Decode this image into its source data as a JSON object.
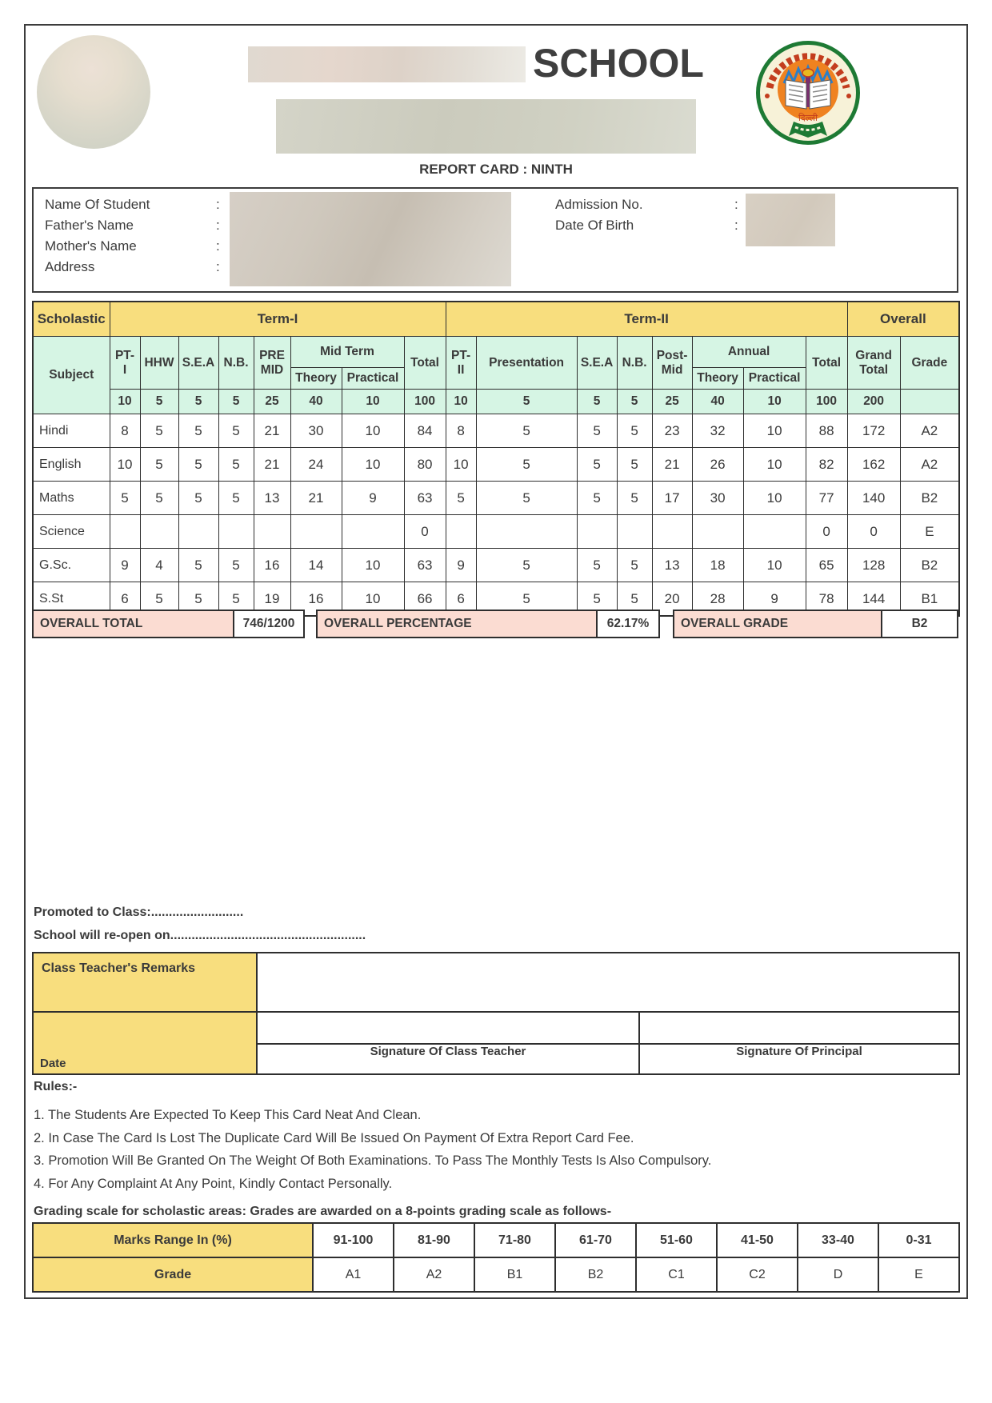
{
  "header": {
    "school_word": "SCHOOL",
    "report_title": "REPORT CARD : NINTH"
  },
  "student_info": {
    "colon": ":",
    "name_label": "Name Of Student",
    "father_label": "Father's Name",
    "mother_label": "Mother's Name",
    "address_label": "Address",
    "admission_label": "Admission No.",
    "dob_label": "Date Of Birth"
  },
  "marks_table": {
    "scholastic": "Scholastic",
    "term1": "Term-I",
    "term2": "Term-II",
    "overall": "Overall",
    "subject": "Subject",
    "cols": {
      "pt1": "PT-\nI",
      "hhw": "HHW",
      "sea": "S.E.A",
      "nb": "N.B.",
      "premid": "PRE\nMID",
      "midterm": "Mid Term",
      "theory": "Theory",
      "practical": "Practical",
      "total": "Total",
      "pt2": "PT-\nII",
      "presentation": "Presentation",
      "postmid": "Post-\nMid",
      "annual": "Annual",
      "grand_total": "Grand\nTotal",
      "grade": "Grade"
    },
    "max_marks": {
      "t1": [
        "10",
        "5",
        "5",
        "5",
        "25",
        "40",
        "10",
        "100"
      ],
      "t2": [
        "10",
        "5",
        "5",
        "5",
        "25",
        "40",
        "10",
        "100"
      ],
      "grand": "200",
      "grade": ""
    },
    "rows": [
      {
        "subject": "Hindi",
        "t1": [
          "8",
          "5",
          "5",
          "5",
          "21",
          "30",
          "10",
          "84"
        ],
        "t2": [
          "8",
          "5",
          "5",
          "5",
          "23",
          "32",
          "10",
          "88"
        ],
        "grand": "172",
        "grade": "A2"
      },
      {
        "subject": "English",
        "t1": [
          "10",
          "5",
          "5",
          "5",
          "21",
          "24",
          "10",
          "80"
        ],
        "t2": [
          "10",
          "5",
          "5",
          "5",
          "21",
          "26",
          "10",
          "82"
        ],
        "grand": "162",
        "grade": "A2"
      },
      {
        "subject": "Maths",
        "t1": [
          "5",
          "5",
          "5",
          "5",
          "13",
          "21",
          "9",
          "63"
        ],
        "t2": [
          "5",
          "5",
          "5",
          "5",
          "17",
          "30",
          "10",
          "77"
        ],
        "grand": "140",
        "grade": "B2"
      },
      {
        "subject": "Science",
        "t1": [
          "",
          "",
          "",
          "",
          "",
          "",
          "",
          "0"
        ],
        "t2": [
          "",
          "",
          "",
          "",
          "",
          "",
          "",
          "0"
        ],
        "grand": "0",
        "grade": "E"
      },
      {
        "subject": "G.Sc.",
        "t1": [
          "9",
          "4",
          "5",
          "5",
          "16",
          "14",
          "10",
          "63"
        ],
        "t2": [
          "9",
          "5",
          "5",
          "5",
          "13",
          "18",
          "10",
          "65"
        ],
        "grand": "128",
        "grade": "B2"
      },
      {
        "subject": "S.St",
        "t1": [
          "6",
          "5",
          "5",
          "5",
          "19",
          "16",
          "10",
          "66"
        ],
        "t2": [
          "6",
          "5",
          "5",
          "5",
          "20",
          "28",
          "9",
          "78"
        ],
        "grand": "144",
        "grade": "B1"
      }
    ]
  },
  "overall": {
    "total_label": "OVERALL TOTAL",
    "total_value": "746/1200",
    "percentage_label": "OVERALL PERCENTAGE",
    "percentage_value": "62.17%",
    "grade_label": "OVERALL GRADE",
    "grade_value": "B2"
  },
  "promotion": {
    "line1": "Promoted to Class:..........................",
    "line2": "School will re-open on......................................................."
  },
  "remarks": {
    "teacher_remarks_label": "Class Teacher's Remarks",
    "date_label": "Date",
    "sig_teacher": "Signature Of Class Teacher",
    "sig_principal": "Signature Of Principal"
  },
  "rules": {
    "title": "Rules:-",
    "items": [
      "1. The Students Are Expected To Keep This Card Neat And Clean.",
      "2. In Case The Card Is Lost The Duplicate Card Will Be Issued On Payment Of Extra Report Card Fee.",
      "3. Promotion Will Be Granted On The Weight Of Both Examinations. To Pass The Monthly Tests Is Also Compulsory.",
      "4. For Any Complaint At Any Point, Kindly Contact Personally."
    ],
    "grading_note": "Grading scale for scholastic areas: Grades are awarded on a 8-points grading scale as follows-"
  },
  "grading_scale": {
    "range_label": "Marks Range In (%)",
    "grade_label": "Grade",
    "ranges": [
      "91-100",
      "81-90",
      "71-80",
      "61-70",
      "51-60",
      "41-50",
      "33-40",
      "0-31"
    ],
    "grades": [
      "A1",
      "A2",
      "B1",
      "B2",
      "C1",
      "C2",
      "D",
      "E"
    ]
  },
  "colors": {
    "header_yellow": "#F8DE7E",
    "header_mint": "#D6F5E4",
    "overall_pink": "#FBDCD2"
  }
}
